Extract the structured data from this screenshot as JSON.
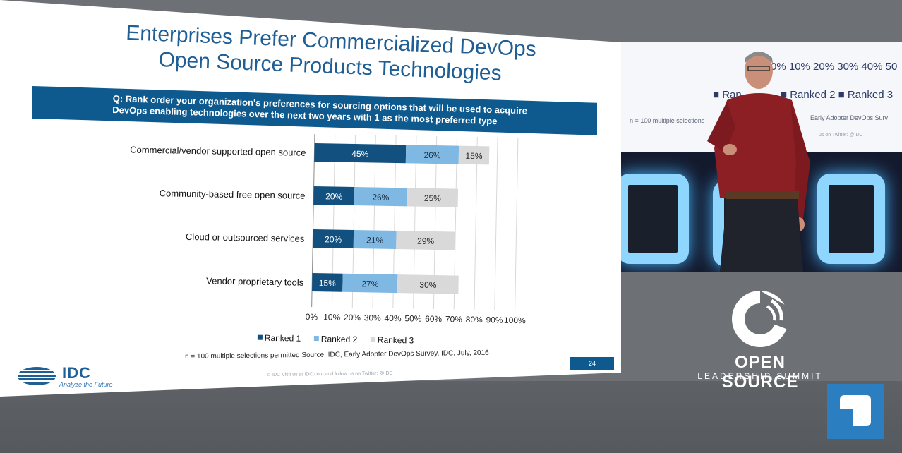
{
  "slide": {
    "title_line1": "Enterprises Prefer Commercialized DevOps",
    "title_line2": "Open Source Products Technologies",
    "question_line1": "Q: Rank order your organization's preferences for sourcing options that will be used to acquire",
    "question_line2": "DevOps enabling technologies over the next two years with 1 as the most preferred type",
    "footnote": "n = 100  multiple selections permitted  Source: IDC, Early Adopter DevOps Survey, IDC, July, 2016",
    "copyright": "© IDC   Visit us at IDC.com and follow us on Twitter: @IDC",
    "page_number": "24",
    "logo_word": "IDC",
    "logo_tagline": "Analyze the Future"
  },
  "chart_data": {
    "type": "bar",
    "orientation": "horizontal",
    "stacked": true,
    "categories": [
      "Commercial/vendor supported open source",
      "Community-based free open source",
      "Cloud or outsourced services",
      "Vendor proprietary tools"
    ],
    "series": [
      {
        "name": "Ranked 1",
        "values": [
          45,
          20,
          20,
          15
        ],
        "labels": [
          "45%",
          "20%",
          "20%",
          "15%"
        ],
        "color": "#11507f",
        "label_color": "#ffffff"
      },
      {
        "name": "Ranked 2",
        "values": [
          26,
          26,
          21,
          27
        ],
        "labels": [
          "26%",
          "26%",
          "21%",
          "27%"
        ],
        "color": "#7fb8e2",
        "label_color": "#1b2a3a"
      },
      {
        "name": "Ranked 3",
        "values": [
          15,
          25,
          29,
          30
        ],
        "labels": [
          "15%",
          "25%",
          "29%",
          "30%"
        ],
        "color": "#d9d9d9",
        "label_color": "#222222"
      }
    ],
    "xlim": [
      0,
      100
    ],
    "x_ticks": [
      "0%",
      "10%",
      "20%",
      "30%",
      "40%",
      "50%",
      "60%",
      "70%",
      "80%",
      "90%",
      "100%"
    ],
    "grid": true,
    "legend_position": "bottom"
  },
  "inset": {
    "axis_text": "0%   10%  20%  30%  40%  50",
    "legend_text": "■ Ranked 2   ■ Ranked 3",
    "legend_text_left": "■ Ran",
    "footnote_text": "n = 100  multiple selections",
    "source_text": "Early Adopter DevOps Surv",
    "twitter_text": "us on Twitter: @IDC"
  },
  "branding": {
    "title": "OPEN SOURCE",
    "subtitle": "LEADERSHIP SUMMIT"
  },
  "colors": {
    "slide_blue": "#0e5a8f",
    "title_blue": "#1f5f95",
    "background": "#6d7074",
    "stage_light": "#8fd6ff"
  }
}
